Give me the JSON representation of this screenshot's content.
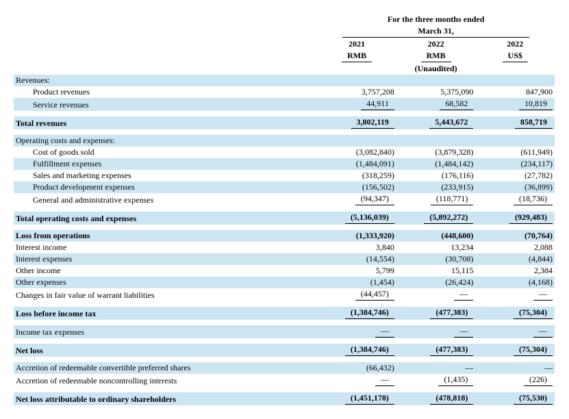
{
  "colors": {
    "band": "#cce5f2",
    "text": "#000000",
    "bg": "#ffffff"
  },
  "header": {
    "period": "For the three months ended",
    "date": "March 31,",
    "cols": [
      {
        "year": "2021",
        "cur": "RMB",
        "note": ""
      },
      {
        "year": "2022",
        "cur": "RMB",
        "note": "(Unaudited)"
      },
      {
        "year": "2022",
        "cur": "US$",
        "note": ""
      }
    ]
  },
  "rows": {
    "revenues_hdr": "Revenues:",
    "product_rev": {
      "l": "Product revenues",
      "a": "3,757,208",
      "b": "5,375,090",
      "c": "847,900"
    },
    "service_rev": {
      "l": "Service revenues",
      "a": "44,911",
      "b": "68,582",
      "c": "10,819"
    },
    "total_rev": {
      "l": "Total revenues",
      "a": "3,802,119",
      "b": "5,443,672",
      "c": "858,719"
    },
    "opcosts_hdr": "Operating costs and expenses:",
    "cogs": {
      "l": "Cost of goods sold",
      "a": "(3,082,840)",
      "b": "(3,879,328)",
      "c": "(611,949)"
    },
    "fulfill": {
      "l": "Fulfillment expenses",
      "a": "(1,484,091)",
      "b": "(1,484,142)",
      "c": "(234,117)"
    },
    "sm": {
      "l": "Sales and marketing expenses",
      "a": "(318,259)",
      "b": "(176,116)",
      "c": "(27,782)"
    },
    "pd": {
      "l": "Product development expenses",
      "a": "(156,502)",
      "b": "(233,915)",
      "c": "(36,899)"
    },
    "ga": {
      "l": "General and administrative expenses",
      "a": "(94,347)",
      "b": "(118,771)",
      "c": "(18,736)"
    },
    "total_op": {
      "l": "Total operating costs and expenses",
      "a": "(5,136,039)",
      "b": "(5,892,272)",
      "c": "(929,483)"
    },
    "loss_ops": {
      "l": "Loss from operations",
      "a": "(1,333,920)",
      "b": "(448,600)",
      "c": "(70,764)"
    },
    "int_inc": {
      "l": "Interest income",
      "a": "3,840",
      "b": "13,234",
      "c": "2,088"
    },
    "int_exp": {
      "l": "Interest expenses",
      "a": "(14,554)",
      "b": "(30,708)",
      "c": "(4,844)"
    },
    "oth_inc": {
      "l": "Other income",
      "a": "5,799",
      "b": "15,115",
      "c": "2,384"
    },
    "oth_exp": {
      "l": "Other expenses",
      "a": "(1,454)",
      "b": "(26,424)",
      "c": "(4,168)"
    },
    "warrant": {
      "l": "Changes in fair value of warrant liabilities",
      "a": "(44,457)",
      "b": "—",
      "c": "—"
    },
    "loss_pretax": {
      "l": "Loss before income tax",
      "a": "(1,384,746)",
      "b": "(477,383)",
      "c": "(75,304)"
    },
    "tax": {
      "l": "Income tax expenses",
      "a": "—",
      "b": "—",
      "c": "—"
    },
    "net_loss": {
      "l": "Net loss",
      "a": "(1,384,746)",
      "b": "(477,383)",
      "c": "(75,304)"
    },
    "accr_pref": {
      "l": "Accretion of redeemable convertible preferred shares",
      "a": "(66,432)",
      "b": "—",
      "c": "—"
    },
    "accr_nci": {
      "l": "Accretion of redeemable noncontrolling interests",
      "a": "—",
      "b": "(1,435)",
      "c": "(226)"
    },
    "net_attr": {
      "l": "Net loss attributable to ordinary shareholders",
      "a": "(1,451,178)",
      "b": "(478,818)",
      "c": "(75,530)"
    }
  }
}
